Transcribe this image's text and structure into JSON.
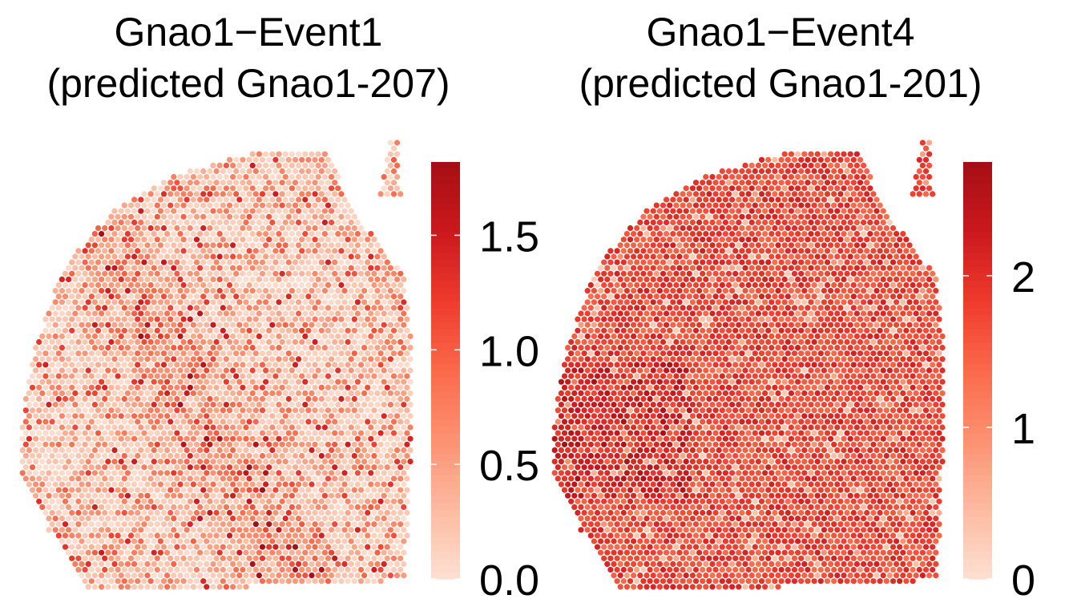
{
  "chart_data": [
    {
      "type": "heatmap",
      "subtype": "spatial-spot-map",
      "title_lines": [
        "Gnao1−Event1",
        "(predicted Gnao1-207)"
      ],
      "xlabel": "",
      "ylabel": "",
      "colorbar": {
        "palette": "Reds",
        "colors": [
          "#fee0d2",
          "#fcbba1",
          "#fc9272",
          "#fb6a4a",
          "#ef3b2c",
          "#cb181d",
          "#a50f15"
        ],
        "min": 0.0,
        "max": 1.82,
        "ticks": [
          0.0,
          0.5,
          1.0,
          1.5
        ],
        "tick_labels": [
          "0.0",
          "0.5",
          "1.0",
          "1.5"
        ],
        "placement": "right"
      },
      "value_summary": {
        "low": 0.0,
        "high": 1.82,
        "dominant": "low (mostly 0.0–0.4) with scattered high spots along a diagonal band"
      },
      "grid": false,
      "legend": "colorbar-right"
    },
    {
      "type": "heatmap",
      "subtype": "spatial-spot-map",
      "title_lines": [
        "Gnao1−Event4",
        "(predicted Gnao1-201)"
      ],
      "xlabel": "",
      "ylabel": "",
      "colorbar": {
        "palette": "Reds",
        "colors": [
          "#fee0d2",
          "#fcbba1",
          "#fc9272",
          "#fb6a4a",
          "#ef3b2c",
          "#cb181d",
          "#a50f15"
        ],
        "min": 0,
        "max": 2.75,
        "ticks": [
          0,
          1,
          2
        ],
        "tick_labels": [
          "0",
          "1",
          "2"
        ],
        "placement": "right"
      },
      "value_summary": {
        "low": 0,
        "high": 2.75,
        "dominant": "moderate-high (mostly 1.4–2.2) across the tissue"
      },
      "grid": false,
      "legend": "colorbar-right"
    }
  ]
}
